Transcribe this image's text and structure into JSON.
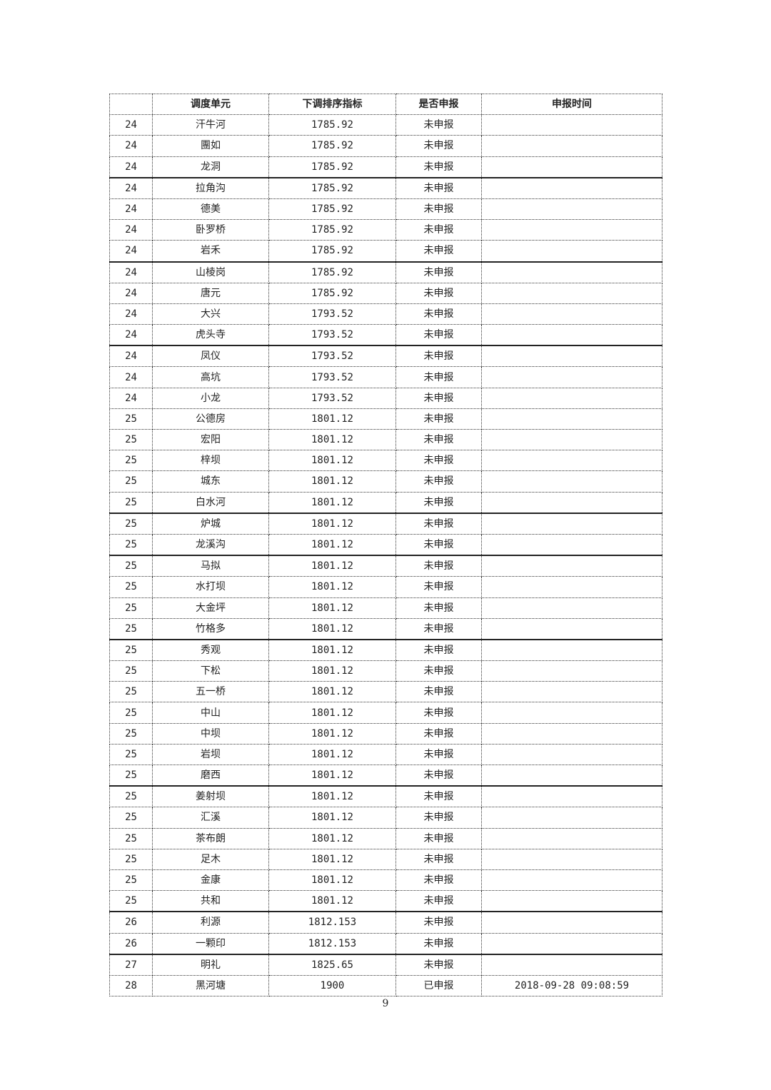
{
  "table": {
    "headers": [
      "",
      "调度单元",
      "下调排序指标",
      "是否申报",
      "申报时间"
    ],
    "rows": [
      [
        "24",
        "汗牛河",
        "1785.92",
        "未申报",
        ""
      ],
      [
        "24",
        "團如",
        "1785.92",
        "未申报",
        ""
      ],
      [
        "24",
        "龙洞",
        "1785.92",
        "未申报",
        ""
      ],
      [
        "24",
        "拉角沟",
        "1785.92",
        "未申报",
        ""
      ],
      [
        "24",
        "德美",
        "1785.92",
        "未申报",
        ""
      ],
      [
        "24",
        "卧罗桥",
        "1785.92",
        "未申报",
        ""
      ],
      [
        "24",
        "岩禾",
        "1785.92",
        "未申报",
        ""
      ],
      [
        "24",
        "山棱岗",
        "1785.92",
        "未申报",
        ""
      ],
      [
        "24",
        "唐元",
        "1785.92",
        "未申报",
        ""
      ],
      [
        "24",
        "大兴",
        "1793.52",
        "未申报",
        ""
      ],
      [
        "24",
        "虎头寺",
        "1793.52",
        "未申报",
        ""
      ],
      [
        "24",
        "凤仪",
        "1793.52",
        "未申报",
        ""
      ],
      [
        "24",
        "高坑",
        "1793.52",
        "未申报",
        ""
      ],
      [
        "24",
        "小龙",
        "1793.52",
        "未申报",
        ""
      ],
      [
        "25",
        "公德房",
        "1801.12",
        "未申报",
        ""
      ],
      [
        "25",
        "宏阳",
        "1801.12",
        "未申报",
        ""
      ],
      [
        "25",
        "梓坝",
        "1801.12",
        "未申报",
        ""
      ],
      [
        "25",
        "城东",
        "1801.12",
        "未申报",
        ""
      ],
      [
        "25",
        "白水河",
        "1801.12",
        "未申报",
        ""
      ],
      [
        "25",
        "炉城",
        "1801.12",
        "未申报",
        ""
      ],
      [
        "25",
        "龙溪沟",
        "1801.12",
        "未申报",
        ""
      ],
      [
        "25",
        "马拟",
        "1801.12",
        "未申报",
        ""
      ],
      [
        "25",
        "水打坝",
        "1801.12",
        "未申报",
        ""
      ],
      [
        "25",
        "大金坪",
        "1801.12",
        "未申报",
        ""
      ],
      [
        "25",
        "竹格多",
        "1801.12",
        "未申报",
        ""
      ],
      [
        "25",
        "秀观",
        "1801.12",
        "未申报",
        ""
      ],
      [
        "25",
        "下松",
        "1801.12",
        "未申报",
        ""
      ],
      [
        "25",
        "五一桥",
        "1801.12",
        "未申报",
        ""
      ],
      [
        "25",
        "中山",
        "1801.12",
        "未申报",
        ""
      ],
      [
        "25",
        "中坝",
        "1801.12",
        "未申报",
        ""
      ],
      [
        "25",
        "岩坝",
        "1801.12",
        "未申报",
        ""
      ],
      [
        "25",
        "磨西",
        "1801.12",
        "未申报",
        ""
      ],
      [
        "25",
        "姜射坝",
        "1801.12",
        "未申报",
        ""
      ],
      [
        "25",
        "汇溪",
        "1801.12",
        "未申报",
        ""
      ],
      [
        "25",
        "茶布朗",
        "1801.12",
        "未申报",
        ""
      ],
      [
        "25",
        "足木",
        "1801.12",
        "未申报",
        ""
      ],
      [
        "25",
        "金康",
        "1801.12",
        "未申报",
        ""
      ],
      [
        "25",
        "共和",
        "1801.12",
        "未申报",
        ""
      ],
      [
        "26",
        "利源",
        "1812.153",
        "未申报",
        ""
      ],
      [
        "26",
        "一颗印",
        "1812.153",
        "未申报",
        ""
      ],
      [
        "27",
        "明礼",
        "1825.65",
        "未申报",
        ""
      ],
      [
        "28",
        "黑河塘",
        "1900",
        "已申报",
        "2018-09-28 09:08:59"
      ]
    ]
  },
  "page_number": "9"
}
